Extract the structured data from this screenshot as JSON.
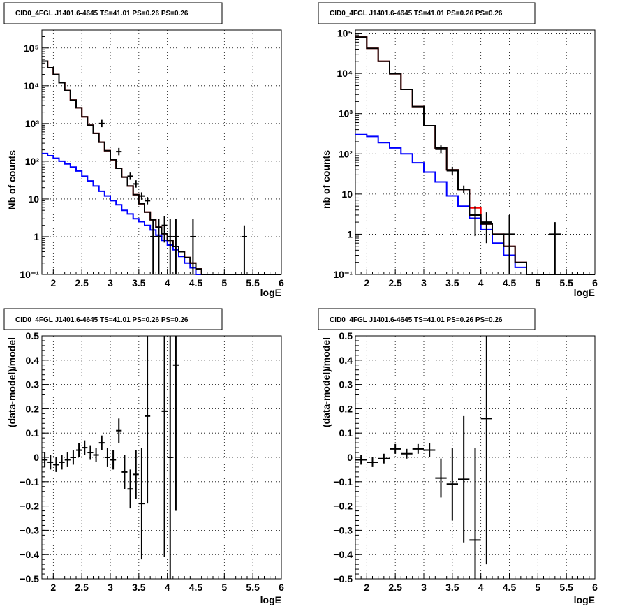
{
  "chart_data": [
    {
      "type": "line",
      "scale": "log",
      "title": "CID0_4FGL J1401.6-4645 TS=41.01 PS=0.26 PS=0.26",
      "xlabel": "logE",
      "ylabel": "Nb of counts",
      "xlim": [
        1.8,
        6
      ],
      "ylim": [
        0.1,
        300000
      ],
      "grid": true,
      "x_ticks": [
        "2",
        "2.5",
        "3",
        "3.5",
        "4",
        "4.5",
        "5",
        "5.5",
        "6"
      ],
      "x_tick_values": [
        2,
        2.5,
        3,
        3.5,
        4,
        4.5,
        5,
        5.5,
        6
      ],
      "y_ticks": [
        "10⁻¹",
        "1",
        "10",
        "10²",
        "10³",
        "10⁴",
        "10⁵"
      ],
      "y_tick_values": [
        0.1,
        1,
        10,
        100,
        1000,
        10000,
        100000
      ],
      "series": [
        {
          "color": "#ff0000",
          "style": "step",
          "step_width": 0.1,
          "x": [
            1.8,
            1.9,
            2.0,
            2.1,
            2.2,
            2.3,
            2.4,
            2.5,
            2.6,
            2.7,
            2.8,
            2.9,
            3.0,
            3.1,
            3.2,
            3.3,
            3.4,
            3.5,
            3.6,
            3.7,
            3.8,
            3.9,
            4.0,
            4.1,
            4.2,
            4.3,
            4.4,
            4.5,
            4.6,
            4.7,
            4.8,
            4.9,
            5.0,
            5.1,
            5.2,
            5.3,
            5.4,
            5.5,
            5.6,
            5.7,
            5.8,
            5.9
          ],
          "y": [
            45000,
            30000,
            20000,
            12000,
            7500,
            4200,
            2600,
            1500,
            900,
            550,
            320,
            190,
            110,
            65,
            38,
            22,
            13,
            7.5,
            4.5,
            2.8,
            1.8,
            1.2,
            0.8,
            0.55,
            0.4,
            0.28,
            0.2,
            0.14,
            0.1,
            0.1,
            0.1,
            0.1,
            0.1,
            0.1,
            0.1,
            0.1,
            0.1,
            0.1,
            0.1,
            0.1,
            0.1,
            0.1
          ]
        },
        {
          "color": "#0000ff",
          "style": "step",
          "step_width": 0.1,
          "x": [
            1.8,
            1.9,
            2.0,
            2.1,
            2.2,
            2.3,
            2.4,
            2.5,
            2.6,
            2.7,
            2.8,
            2.9,
            3.0,
            3.1,
            3.2,
            3.3,
            3.4,
            3.5,
            3.6,
            3.7,
            3.8,
            3.9,
            4.0,
            4.1,
            4.2,
            4.3,
            4.4,
            4.5,
            4.6,
            4.7,
            4.8,
            4.9,
            5.0,
            5.1,
            5.2,
            5.3,
            5.4,
            5.5,
            5.6,
            5.7,
            5.8,
            5.9
          ],
          "y": [
            160,
            140,
            120,
            100,
            85,
            70,
            55,
            40,
            30,
            22,
            16,
            12,
            9,
            7,
            5,
            4,
            3,
            2.5,
            2,
            1.5,
            1.1,
            0.8,
            0.6,
            0.45,
            0.3,
            0.2,
            0.15,
            0.1,
            0.1,
            0.1,
            0.1,
            0.1,
            0.1,
            0.1,
            0.1,
            0.1,
            0.1,
            0.1,
            0.1,
            0.1,
            0.1,
            0.1
          ]
        },
        {
          "color": "#000000",
          "style": "step",
          "step_width": 0.1,
          "x": [
            1.8,
            1.9,
            2.0,
            2.1,
            2.2,
            2.3,
            2.4,
            2.5,
            2.6,
            2.7,
            2.8,
            2.9,
            3.0,
            3.1,
            3.2,
            3.3,
            3.4,
            3.5,
            3.6,
            3.7,
            3.8,
            3.9,
            4.0,
            4.1,
            4.2,
            4.3,
            4.4,
            4.5,
            4.6,
            4.7,
            4.8,
            4.9,
            5.0,
            5.1,
            5.2,
            5.3,
            5.4,
            5.5,
            5.6,
            5.7,
            5.8,
            5.9
          ],
          "y": [
            45000,
            30000,
            20000,
            12000,
            7500,
            4200,
            2600,
            1500,
            900,
            550,
            320,
            190,
            110,
            65,
            38,
            22,
            13,
            7.5,
            4.5,
            2.8,
            1.8,
            1.2,
            0.8,
            0.55,
            0.4,
            0.28,
            0.2,
            0.14,
            0.1,
            0.1,
            0.1,
            0.1,
            0.1,
            0.1,
            0.1,
            0.1,
            0.1,
            0.1,
            0.1,
            0.1,
            0.1,
            0.1
          ]
        }
      ],
      "points": {
        "x": [
          2.85,
          3.15,
          3.35,
          3.45,
          3.55,
          3.65,
          3.75,
          3.85,
          3.95,
          4.05,
          4.15,
          4.45,
          5.35
        ],
        "xerr": 0.05,
        "y": [
          1000,
          180,
          40,
          25,
          12,
          9,
          1,
          1,
          2,
          1,
          1,
          1,
          1
        ],
        "y_lo": [
          null,
          null,
          null,
          null,
          null,
          null,
          0.1,
          0.1,
          0.7,
          0.1,
          0.1,
          0.1,
          0.1
        ],
        "y_hi": [
          null,
          null,
          null,
          null,
          null,
          null,
          3,
          3,
          3.5,
          3,
          3,
          3,
          2
        ]
      }
    },
    {
      "type": "line",
      "scale": "log",
      "title": "CID0_4FGL J1401.6-4645 TS=41.01 PS=0.26 PS=0.26",
      "xlabel": "logE",
      "ylabel": "nb of counts",
      "xlim": [
        1.8,
        6
      ],
      "ylim": [
        0.1,
        120000
      ],
      "grid": true,
      "x_ticks": [
        "2",
        "2.5",
        "3",
        "3.5",
        "4",
        "4.5",
        "5",
        "5.5",
        "6"
      ],
      "x_tick_values": [
        2,
        2.5,
        3,
        3.5,
        4,
        4.5,
        5,
        5.5,
        6
      ],
      "y_ticks": [
        "10⁻¹",
        "1",
        "10",
        "10²",
        "10³",
        "10⁴",
        "10⁵"
      ],
      "y_tick_values": [
        0.1,
        1,
        10,
        100,
        1000,
        10000,
        100000
      ],
      "series": [
        {
          "color": "#ff0000",
          "style": "step",
          "step_width": 0.2,
          "x": [
            1.8,
            2.0,
            2.2,
            2.4,
            2.6,
            2.8,
            3.0,
            3.2,
            3.4,
            3.6,
            3.8,
            4.0,
            4.2,
            4.4,
            4.6,
            4.8,
            5.0,
            5.2,
            5.4,
            5.6,
            5.8
          ],
          "y": [
            80000,
            42000,
            20000,
            9800,
            4000,
            1500,
            500,
            140,
            40,
            13,
            4.5,
            1.8,
            1,
            0.5,
            0.2,
            0.1,
            0.1,
            0.1,
            0.1,
            0.1,
            0.1
          ]
        },
        {
          "color": "#0000ff",
          "style": "step",
          "step_width": 0.2,
          "x": [
            1.8,
            2.0,
            2.2,
            2.4,
            2.6,
            2.8,
            3.0,
            3.2,
            3.4,
            3.6,
            3.8,
            4.0,
            4.2,
            4.4,
            4.6,
            4.8,
            5.0,
            5.2,
            5.4,
            5.6,
            5.8
          ],
          "y": [
            300,
            270,
            190,
            140,
            100,
            60,
            35,
            20,
            9,
            5,
            2.5,
            1.3,
            0.6,
            0.3,
            0.15,
            0.1,
            0.1,
            0.1,
            0.1,
            0.1,
            0.1
          ]
        },
        {
          "color": "#000000",
          "style": "step",
          "step_width": 0.2,
          "x": [
            1.8,
            2.0,
            2.2,
            2.4,
            2.6,
            2.8,
            3.0,
            3.2,
            3.4,
            3.6,
            3.8,
            4.0,
            4.2,
            4.4,
            4.6,
            4.8,
            5.0,
            5.2,
            5.4,
            5.6,
            5.8
          ],
          "y": [
            80000,
            42000,
            20000,
            9800,
            4000,
            1500,
            500,
            140,
            40,
            13,
            3,
            1.8,
            1,
            0.5,
            0.2,
            0.1,
            0.1,
            0.1,
            0.1,
            0.1,
            0.1
          ]
        }
      ],
      "points": {
        "x": [
          3.3,
          3.5,
          3.7,
          3.9,
          4.1,
          4.5,
          5.3
        ],
        "xerr": 0.1,
        "y": [
          130,
          38,
          13,
          3,
          2,
          1,
          1
        ],
        "y_lo": [
          null,
          null,
          null,
          0.9,
          0.6,
          0.1,
          0.1
        ],
        "y_hi": [
          null,
          null,
          null,
          5,
          3.5,
          3,
          2
        ]
      }
    },
    {
      "type": "scatter",
      "title": "CID0_4FGL J1401.6-4645 TS=41.01 PS=0.26 PS=0.26",
      "xlabel": "logE",
      "ylabel": "(data-model)/model",
      "xlim": [
        1.8,
        6
      ],
      "ylim": [
        -0.5,
        0.5
      ],
      "grid": true,
      "x_ticks": [
        "2",
        "2.5",
        "3",
        "3.5",
        "4",
        "4.5",
        "5",
        "5.5",
        "6"
      ],
      "x_tick_values": [
        2,
        2.5,
        3,
        3.5,
        4,
        4.5,
        5,
        5.5,
        6
      ],
      "y_ticks": [
        "−0.5",
        "−0.4",
        "−0.3",
        "−0.2",
        "−0.1",
        "0",
        "0.1",
        "0.2",
        "0.3",
        "0.4",
        "0.5"
      ],
      "y_tick_values": [
        -0.5,
        -0.4,
        -0.3,
        -0.2,
        -0.1,
        0,
        0.1,
        0.2,
        0.3,
        0.4,
        0.5
      ],
      "points": {
        "x": [
          1.85,
          1.95,
          2.05,
          2.15,
          2.25,
          2.35,
          2.45,
          2.55,
          2.65,
          2.75,
          2.85,
          2.95,
          3.05,
          3.15,
          3.25,
          3.35,
          3.45,
          3.55,
          3.65,
          3.95,
          4.05,
          4.15
        ],
        "xerr": 0.05,
        "y": [
          -0.01,
          -0.02,
          -0.03,
          -0.02,
          -0.01,
          0.0,
          0.03,
          0.04,
          0.02,
          0.01,
          0.06,
          0.0,
          -0.01,
          0.11,
          -0.06,
          -0.13,
          -0.07,
          -0.19,
          0.17,
          0.19,
          0.0,
          0.38
        ],
        "yerr": [
          0.03,
          0.03,
          0.03,
          0.03,
          0.03,
          0.03,
          0.03,
          0.03,
          0.03,
          0.03,
          0.03,
          0.04,
          0.04,
          0.05,
          0.07,
          0.08,
          0.1,
          0.23,
          0.36,
          0.6,
          0.6,
          0.6
        ]
      }
    },
    {
      "type": "scatter",
      "title": "CID0_4FGL J1401.6-4645 TS=41.01 PS=0.26 PS=0.26",
      "xlabel": "logE",
      "ylabel": "(data-model)/model",
      "xlim": [
        1.8,
        6
      ],
      "ylim": [
        -0.5,
        0.5
      ],
      "grid": true,
      "x_ticks": [
        "2",
        "2.5",
        "3",
        "3.5",
        "4",
        "4.5",
        "5",
        "5.5",
        "6"
      ],
      "x_tick_values": [
        2,
        2.5,
        3,
        3.5,
        4,
        4.5,
        5,
        5.5,
        6
      ],
      "y_ticks": [
        "−0.5",
        "−0.4",
        "−0.3",
        "−0.2",
        "−0.1",
        "0",
        "0.1",
        "0.2",
        "0.3",
        "0.4",
        "0.5"
      ],
      "y_tick_values": [
        -0.5,
        -0.4,
        -0.3,
        -0.2,
        -0.1,
        0,
        0.1,
        0.2,
        0.3,
        0.4,
        0.5
      ],
      "points": {
        "x": [
          1.9,
          2.1,
          2.3,
          2.5,
          2.7,
          2.9,
          3.1,
          3.3,
          3.5,
          3.7,
          3.9,
          4.1
        ],
        "xerr": 0.1,
        "y": [
          -0.01,
          -0.02,
          -0.005,
          0.035,
          0.015,
          0.035,
          0.03,
          -0.085,
          -0.11,
          -0.09,
          -0.34,
          0.16
        ],
        "yerr": [
          0.02,
          0.02,
          0.02,
          0.02,
          0.02,
          0.02,
          0.03,
          0.08,
          0.15,
          0.26,
          0.38,
          0.6
        ]
      }
    }
  ]
}
